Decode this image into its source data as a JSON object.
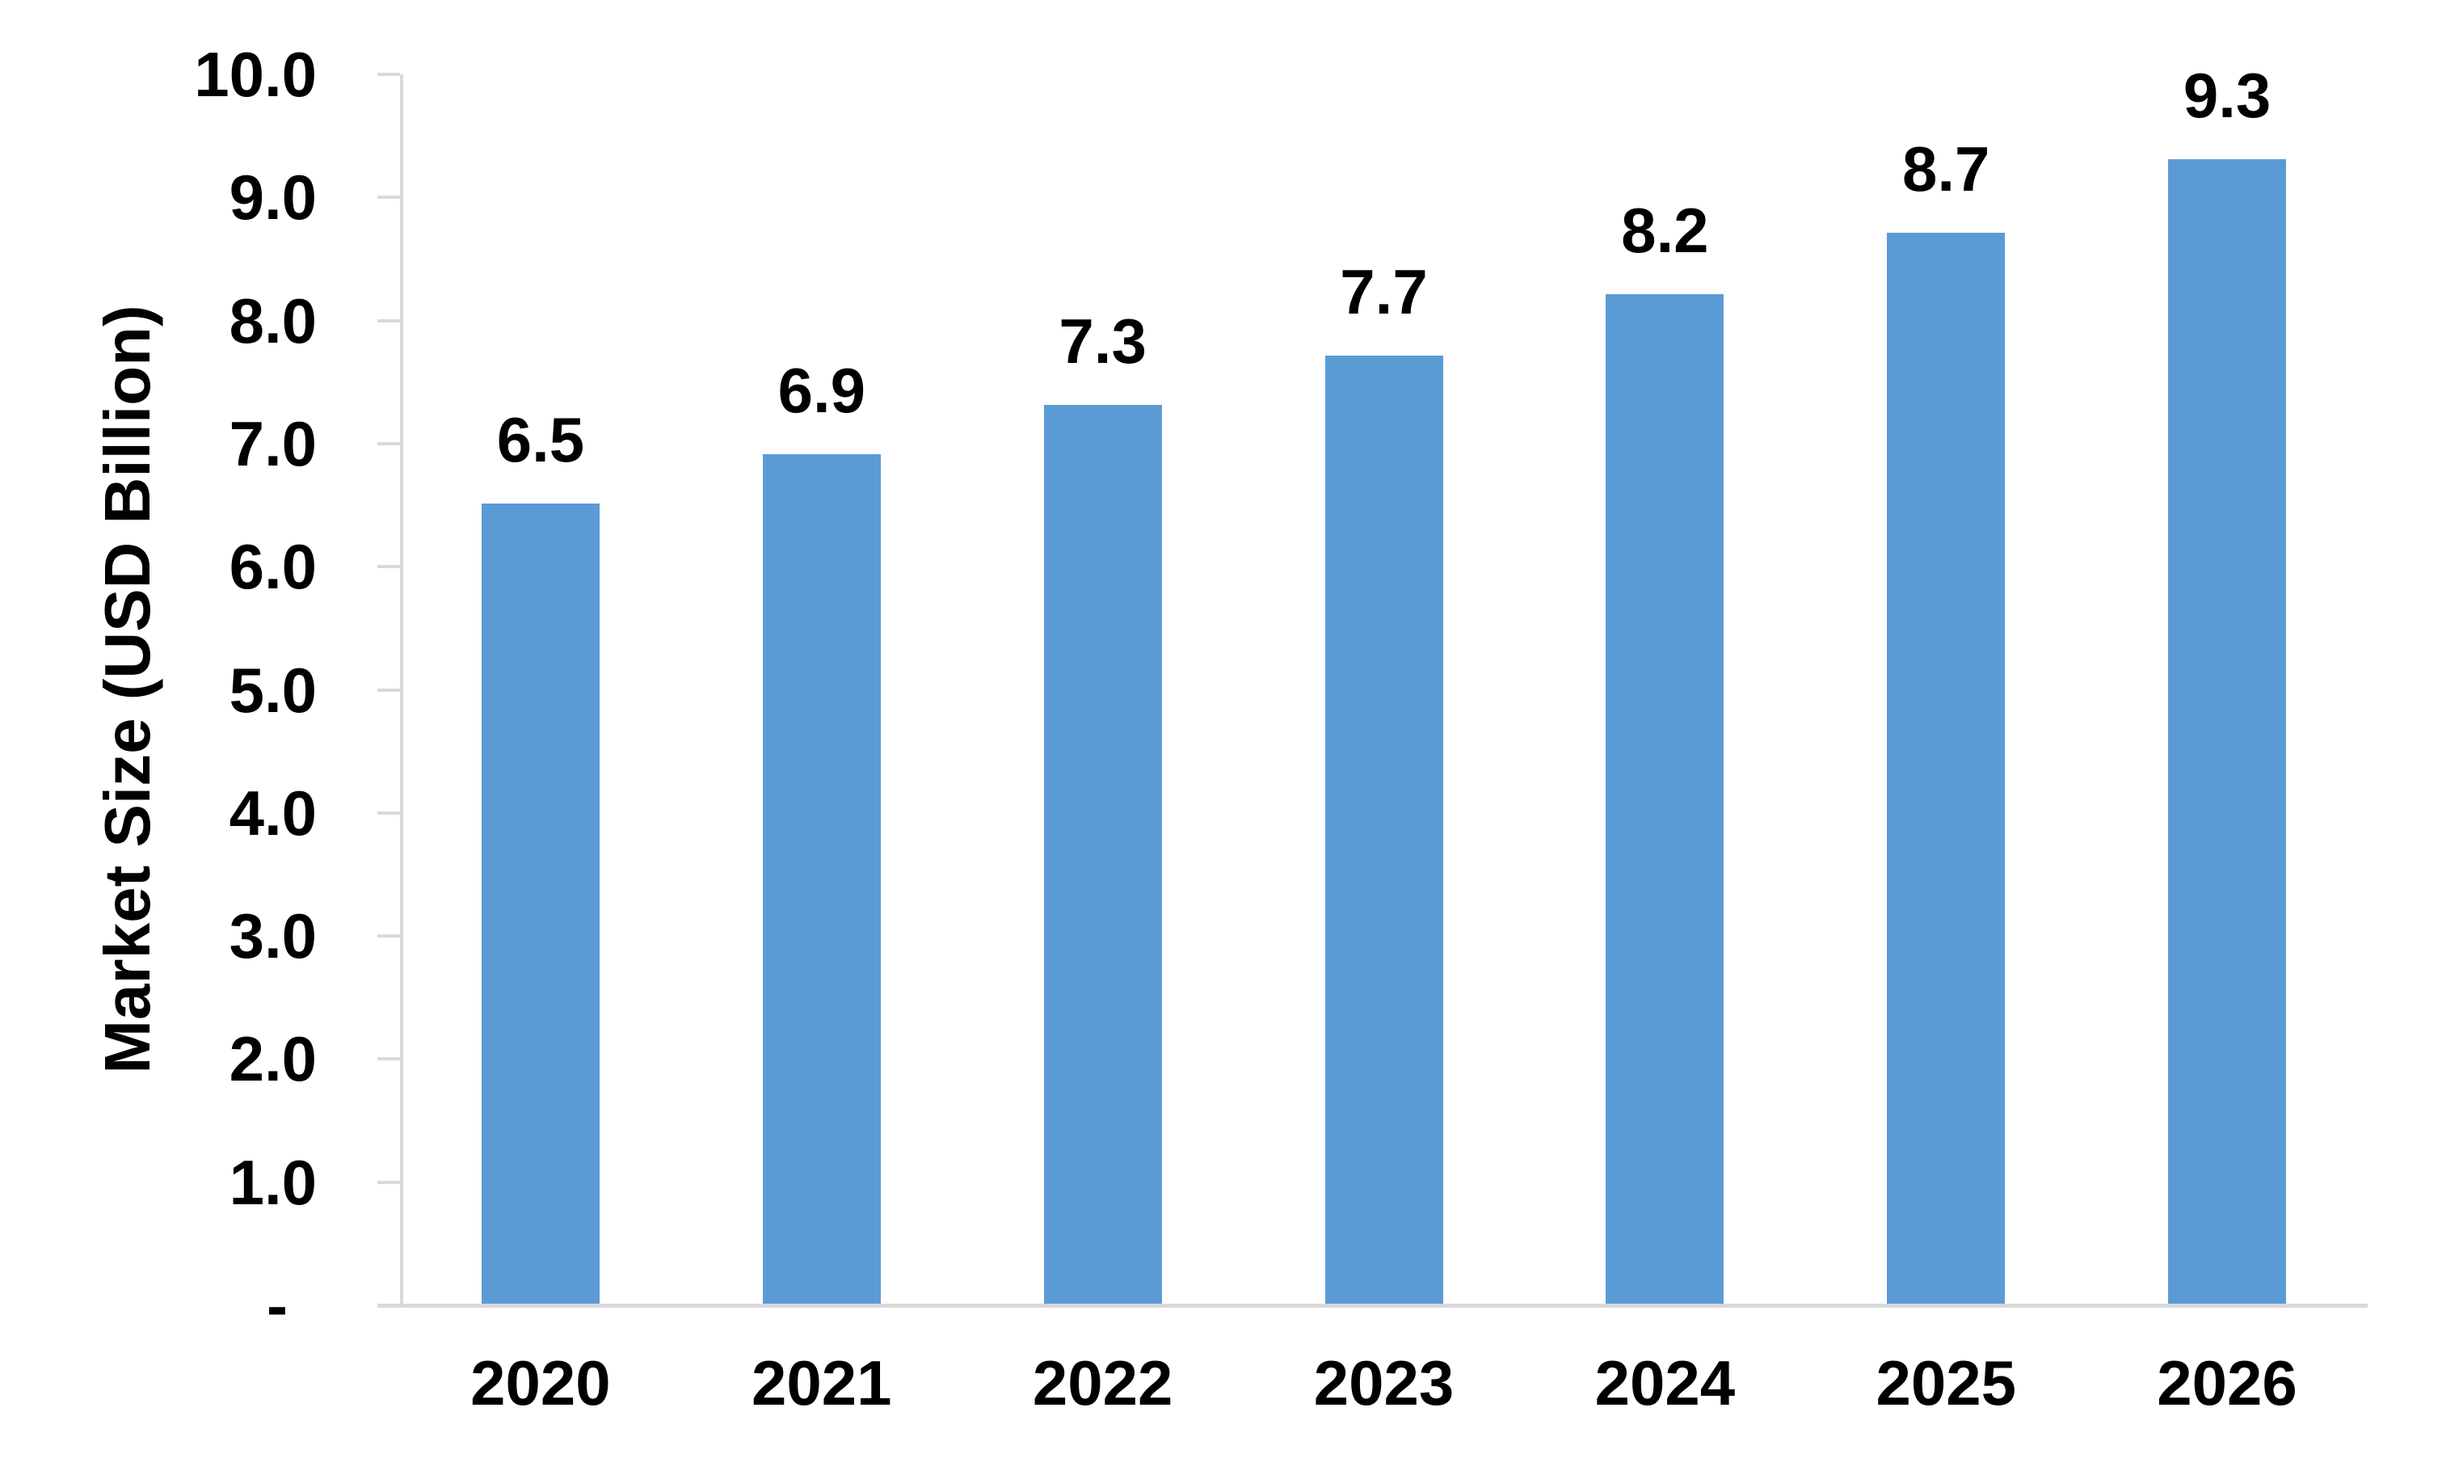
{
  "chart_data": {
    "type": "bar",
    "title": "",
    "categories": [
      "2020",
      "2021",
      "2022",
      "2023",
      "2024",
      "2025",
      "2026"
    ],
    "values": [
      6.5,
      6.9,
      7.3,
      7.7,
      8.2,
      8.7,
      9.3
    ],
    "value_labels": [
      "6.5",
      "6.9",
      "7.3",
      "7.7",
      "8.2",
      "8.7",
      "9.3"
    ],
    "xlabel": "",
    "ylabel": "Market Size (USD Billion)",
    "ylim": [
      0,
      10
    ],
    "ytick_step": 1,
    "ytick_labels": [
      "-",
      "1.0",
      "2.0",
      "3.0",
      "4.0",
      "5.0",
      "6.0",
      "7.0",
      "8.0",
      "9.0",
      "10.0"
    ],
    "grid": false,
    "legend": "none",
    "data_labels_position": "above-bar",
    "colors": {
      "bar": "#5B9BD5",
      "axis": "#D9D9D9",
      "text": "#000000",
      "background": "#FFFFFF"
    }
  }
}
